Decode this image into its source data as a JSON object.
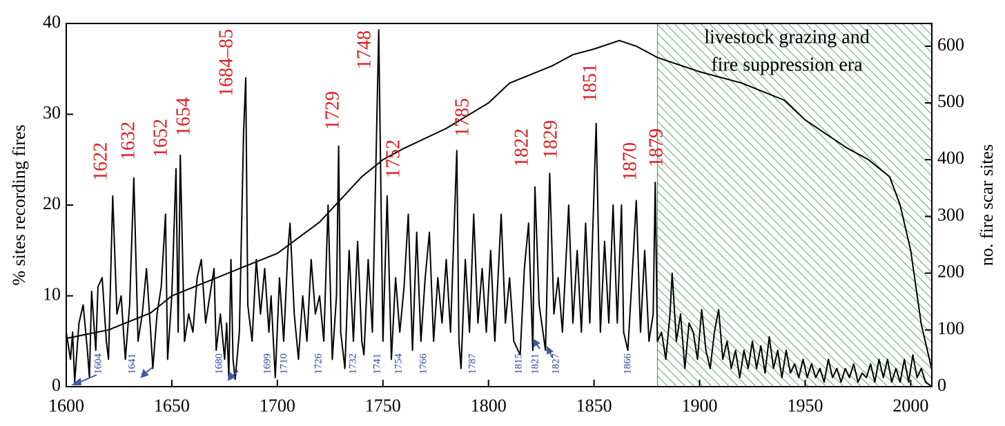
{
  "chart_data": {
    "type": "line",
    "ylabel": "% sites recording fires",
    "y2label": "no. fire scar sites",
    "xlim": [
      1600,
      2010
    ],
    "xticks": [
      1600,
      1650,
      1700,
      1750,
      1800,
      1850,
      1900,
      1950,
      2000
    ],
    "ylim": [
      0,
      40
    ],
    "yticks": [
      0,
      10,
      20,
      30,
      40
    ],
    "y2lim": [
      0,
      640
    ],
    "y2ticks": [
      0,
      100,
      200,
      300,
      400,
      500,
      600
    ],
    "shaded_region": {
      "x": [
        1880,
        2010
      ],
      "color": "#3a8a4a",
      "label": [
        "livestock grazing and",
        "fire suppression era"
      ]
    },
    "peak_labels": [
      "1622",
      "1632",
      "1652",
      "1654",
      "1684–85",
      "1729",
      "1748",
      "1752",
      "1785",
      "1822",
      "1829",
      "1851",
      "1870",
      "1879"
    ],
    "peak_label_color": "#e0191e",
    "low_labels": [
      "1604",
      "1641",
      "1680",
      "1699",
      "1710",
      "1726",
      "1732",
      "1741",
      "1754",
      "1766",
      "1787",
      "1815",
      "1821",
      "1827",
      "1866"
    ],
    "low_label_color": "#2b3f9e",
    "series": [
      {
        "name": "% sites recording fires",
        "color": "#000000",
        "x": [
          1600,
          1602,
          1603,
          1604,
          1606,
          1608,
          1610,
          1611,
          1612,
          1614,
          1615,
          1617,
          1619,
          1620,
          1622,
          1624,
          1626,
          1628,
          1630,
          1632,
          1634,
          1636,
          1638,
          1640,
          1641,
          1643,
          1645,
          1647,
          1648,
          1650,
          1652,
          1653,
          1654,
          1656,
          1658,
          1660,
          1662,
          1664,
          1666,
          1668,
          1670,
          1671,
          1673,
          1675,
          1676,
          1677,
          1678,
          1679,
          1680,
          1682,
          1684,
          1685,
          1686,
          1688,
          1690,
          1692,
          1694,
          1696,
          1697,
          1699,
          1701,
          1703,
          1705,
          1706,
          1708,
          1710,
          1712,
          1714,
          1716,
          1718,
          1720,
          1722,
          1724,
          1726,
          1728,
          1729,
          1730,
          1732,
          1734,
          1736,
          1738,
          1740,
          1741,
          1743,
          1745,
          1748,
          1750,
          1752,
          1754,
          1756,
          1758,
          1760,
          1762,
          1764,
          1766,
          1768,
          1770,
          1772,
          1774,
          1776,
          1778,
          1780,
          1782,
          1785,
          1786,
          1787,
          1789,
          1791,
          1793,
          1795,
          1797,
          1799,
          1801,
          1803,
          1806,
          1808,
          1810,
          1812,
          1815,
          1817,
          1819,
          1821,
          1822,
          1824,
          1827,
          1829,
          1831,
          1833,
          1835,
          1838,
          1840,
          1842,
          1844,
          1846,
          1848,
          1851,
          1853,
          1855,
          1857,
          1859,
          1861,
          1863,
          1864,
          1866,
          1868,
          1870,
          1872,
          1874,
          1876,
          1878,
          1879,
          1880,
          1882,
          1884,
          1886,
          1887,
          1889,
          1891,
          1893,
          1895,
          1897,
          1899,
          1901,
          1903,
          1905,
          1907,
          1909,
          1911,
          1913,
          1915,
          1917,
          1919,
          1921,
          1923,
          1925,
          1927,
          1929,
          1931,
          1933,
          1935,
          1937,
          1939,
          1941,
          1943,
          1945,
          1947,
          1949,
          1951,
          1953,
          1955,
          1957,
          1959,
          1961,
          1963,
          1965,
          1967,
          1969,
          1971,
          1973,
          1975,
          1977,
          1979,
          1981,
          1983,
          1985,
          1987,
          1989,
          1991,
          1993,
          1995,
          1997,
          1999,
          2001,
          2003,
          2005,
          2007,
          2010
        ],
        "values": [
          6,
          3,
          6,
          0.5,
          7,
          9,
          4,
          1,
          10.5,
          4,
          11,
          12,
          5,
          3,
          21,
          8,
          10,
          3,
          9,
          23,
          5,
          8,
          13,
          6,
          2,
          8,
          11,
          19,
          3,
          10,
          24,
          6,
          25.5,
          5,
          8,
          6,
          12,
          14,
          7,
          10,
          13,
          4,
          8,
          3,
          7,
          1,
          14,
          3,
          0.8,
          6,
          28,
          34,
          9,
          5,
          14,
          8,
          13,
          6,
          10,
          1,
          12,
          5,
          15,
          18,
          8,
          3,
          10,
          5,
          14,
          8,
          10,
          5,
          20,
          3,
          10,
          26.5,
          6,
          2,
          15,
          5,
          16,
          5,
          3.5,
          14,
          6,
          39.3,
          5,
          21,
          3,
          12,
          6,
          11,
          19,
          4,
          17,
          5,
          12,
          17,
          5,
          12,
          7,
          14,
          6,
          26,
          5,
          2,
          14,
          6,
          19,
          7,
          13,
          6,
          15,
          5,
          19,
          7,
          12,
          5,
          3.5,
          13,
          18,
          4,
          22,
          9,
          4,
          23.5,
          8,
          12,
          6,
          20,
          7,
          15,
          6,
          18,
          7,
          29,
          6,
          16,
          7,
          20,
          7,
          20,
          6,
          4,
          12,
          20.5,
          6,
          15,
          5,
          8,
          22.5,
          5,
          6,
          3,
          8,
          12.5,
          5,
          8,
          2,
          7,
          6,
          3,
          8.5,
          4,
          2,
          6,
          8.5,
          3,
          5,
          2,
          4,
          1,
          4,
          2,
          5,
          2,
          4.5,
          1.5,
          5.5,
          2,
          4,
          1,
          4,
          1.5,
          2.5,
          1,
          3,
          1,
          2.5,
          1,
          2,
          0.5,
          3,
          1,
          2,
          0.5,
          2,
          1,
          2.5,
          0.5,
          1.5,
          1,
          2.5,
          0.5,
          3,
          1,
          3,
          0.5,
          2,
          0.5,
          3,
          0.5,
          3.5,
          1,
          2,
          0.5,
          0
        ]
      },
      {
        "name": "no. fire scar sites",
        "color": "#000000",
        "axis": "y2",
        "x": [
          1600,
          1620,
          1640,
          1650,
          1660,
          1680,
          1700,
          1720,
          1740,
          1750,
          1760,
          1780,
          1800,
          1810,
          1820,
          1830,
          1840,
          1850,
          1862,
          1870,
          1880,
          1900,
          1920,
          1940,
          1950,
          1960,
          1970,
          1980,
          1990,
          1995,
          2000,
          2005,
          2010
        ],
        "values": [
          85,
          100,
          130,
          160,
          175,
          205,
          235,
          290,
          370,
          400,
          420,
          455,
          500,
          535,
          550,
          565,
          585,
          595,
          610,
          600,
          580,
          555,
          535,
          505,
          470,
          445,
          420,
          400,
          370,
          320,
          240,
          110,
          30
        ]
      }
    ]
  }
}
